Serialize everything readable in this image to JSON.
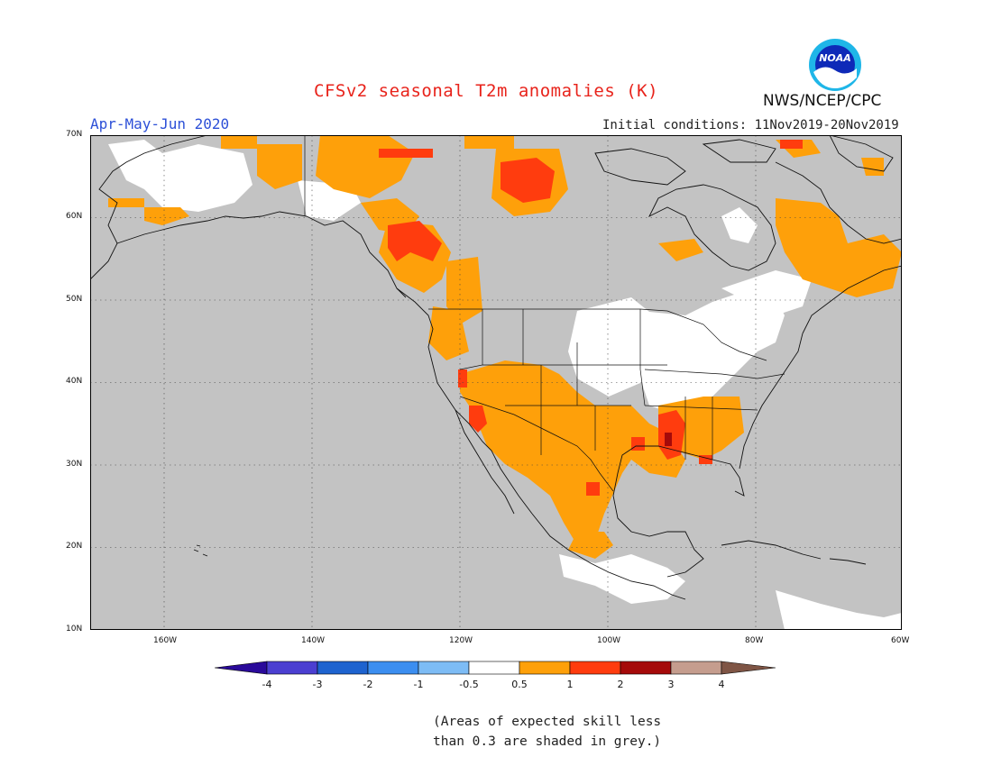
{
  "header": {
    "title": "CFSv2 seasonal T2m anomalies (K)",
    "period": "Apr-May-Jun 2020",
    "initial_conditions": "Initial conditions: 11Nov2019-20Nov2019",
    "agency": "NWS/NCEP/CPC",
    "logo_text": "NOAA"
  },
  "map": {
    "latitudes": [
      "70N",
      "60N",
      "50N",
      "40N",
      "30N",
      "20N",
      "10N"
    ],
    "longitudes": [
      "160W",
      "140W",
      "120W",
      "100W",
      "80W",
      "60W"
    ],
    "mask_color": "#c3c3c3",
    "colors": {
      "neutral": "#ffffff",
      "warm_05_1": "#fea00a",
      "warm_1_2": "#ff3c0e",
      "warm_2_3": "#a50a0a"
    }
  },
  "legend": {
    "tick_labels": [
      "-4",
      "-3",
      "-2",
      "-1",
      "-0.5",
      "0.5",
      "1",
      "2",
      "3",
      "4"
    ],
    "colors": [
      "#2a0a9a",
      "#4b3fd1",
      "#1e63cf",
      "#3c8ef0",
      "#7dbcf5",
      "#ffffff",
      "#fea00a",
      "#ff3c0e",
      "#a50a0a",
      "#c59d8e",
      "#7f5545"
    ]
  },
  "footnote": {
    "line1": "(Areas of expected skill less",
    "line2": "than 0.3 are shaded in grey.)"
  }
}
